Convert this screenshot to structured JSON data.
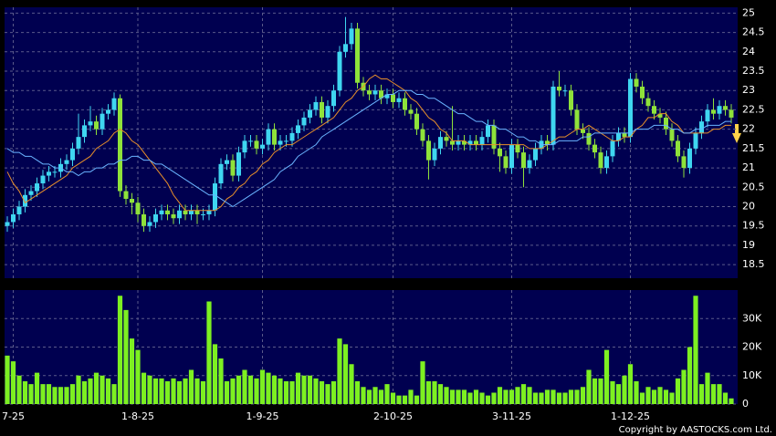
{
  "chart_data": [
    {
      "type": "candlestick",
      "up_color": "#3fd6f0",
      "down_color": "#8fe23a",
      "grid": true,
      "ylim": [
        18.15,
        25.15
      ],
      "yticks": [
        18.5,
        19,
        19.5,
        20,
        20.5,
        21,
        21.5,
        22,
        22.5,
        23,
        23.5,
        24,
        24.5,
        25
      ],
      "open": [
        19.5,
        19.6,
        19.8,
        20.0,
        20.3,
        20.4,
        20.6,
        20.8,
        20.9,
        20.9,
        21.1,
        21.2,
        21.5,
        21.8,
        22.1,
        22.2,
        22.0,
        22.4,
        22.5,
        22.8,
        20.4,
        20.2,
        20.1,
        19.8,
        19.5,
        19.6,
        19.8,
        19.9,
        19.8,
        19.7,
        19.9,
        19.8,
        19.9,
        19.8,
        19.8,
        19.9,
        20.6,
        21.1,
        21.2,
        20.8,
        21.4,
        21.7,
        21.7,
        21.5,
        21.6,
        22.0,
        21.6,
        21.7,
        21.7,
        21.9,
        22.1,
        22.3,
        22.5,
        22.7,
        22.3,
        22.6,
        23.0,
        24.0,
        24.2,
        24.6,
        23.2,
        23.0,
        22.9,
        23.0,
        22.8,
        22.9,
        22.7,
        22.8,
        22.5,
        22.4,
        22.0,
        21.7,
        21.2,
        21.5,
        21.8,
        21.7,
        21.6,
        21.7,
        21.6,
        21.7,
        21.6,
        21.8,
        22.1,
        21.5,
        21.3,
        21.0,
        21.6,
        21.4,
        21.0,
        21.2,
        21.5,
        21.7,
        21.6,
        23.1,
        23.0,
        23.0,
        22.5,
        22.0,
        21.9,
        21.6,
        21.4,
        21.0,
        21.3,
        21.7,
        21.9,
        21.8,
        23.3,
        23.1,
        22.8,
        22.6,
        22.4,
        22.3,
        22.0,
        21.7,
        21.3,
        21.0,
        21.5,
        21.9,
        22.2,
        22.5,
        22.4,
        22.6,
        22.5
      ],
      "high": [
        19.75,
        19.95,
        20.15,
        20.45,
        20.55,
        20.75,
        20.95,
        21.05,
        21.05,
        21.25,
        21.35,
        21.65,
        22.4,
        22.25,
        22.6,
        22.35,
        22.55,
        22.65,
        22.95,
        22.9,
        20.55,
        20.35,
        20.25,
        19.95,
        19.75,
        19.95,
        20.05,
        20.05,
        19.95,
        20.05,
        20.05,
        20.05,
        20.05,
        19.95,
        20.05,
        20.75,
        21.25,
        21.35,
        21.35,
        21.55,
        21.85,
        21.85,
        21.85,
        21.75,
        22.15,
        22.15,
        21.85,
        21.85,
        22.05,
        22.25,
        22.45,
        22.65,
        22.85,
        22.85,
        22.75,
        23.15,
        24.15,
        24.9,
        24.75,
        24.75,
        23.35,
        23.15,
        23.15,
        23.15,
        23.05,
        23.05,
        22.95,
        22.95,
        22.65,
        22.55,
        22.15,
        21.85,
        21.65,
        21.95,
        21.95,
        22.6,
        21.85,
        21.85,
        21.85,
        21.85,
        21.95,
        22.25,
        22.25,
        21.65,
        21.45,
        21.75,
        21.75,
        21.55,
        21.35,
        21.65,
        21.85,
        21.85,
        23.25,
        23.5,
        23.15,
        23.15,
        22.65,
        22.15,
        22.05,
        21.75,
        21.55,
        21.45,
        21.85,
        22.05,
        22.05,
        23.45,
        23.45,
        23.25,
        22.95,
        22.75,
        22.55,
        22.45,
        22.15,
        21.85,
        21.45,
        21.65,
        22.05,
        22.35,
        22.65,
        22.8,
        22.75,
        22.75,
        22.65
      ],
      "low": [
        19.35,
        19.45,
        19.65,
        19.85,
        20.15,
        20.25,
        20.45,
        20.65,
        20.75,
        20.75,
        20.95,
        21.05,
        21.35,
        21.65,
        21.95,
        21.85,
        21.85,
        22.25,
        22.35,
        20.25,
        20.05,
        19.8,
        19.6,
        19.35,
        19.35,
        19.45,
        19.65,
        19.65,
        19.55,
        19.55,
        19.65,
        19.65,
        19.55,
        19.65,
        19.65,
        19.75,
        20.45,
        20.95,
        20.65,
        20.65,
        21.25,
        21.55,
        21.35,
        21.35,
        21.45,
        21.45,
        21.45,
        21.55,
        21.55,
        21.75,
        21.95,
        22.15,
        22.35,
        22.15,
        22.15,
        22.45,
        22.85,
        23.85,
        24.05,
        23.05,
        22.85,
        22.75,
        22.75,
        22.65,
        22.65,
        22.55,
        22.55,
        22.35,
        22.25,
        21.85,
        21.55,
        20.7,
        21.05,
        21.35,
        21.55,
        21.45,
        21.45,
        21.45,
        21.45,
        21.45,
        21.45,
        21.65,
        21.35,
        20.9,
        20.85,
        20.85,
        21.25,
        20.5,
        20.85,
        21.05,
        21.35,
        21.45,
        21.45,
        22.85,
        22.85,
        22.35,
        21.85,
        21.75,
        21.45,
        21.25,
        20.85,
        20.85,
        21.15,
        21.55,
        21.65,
        21.65,
        22.95,
        22.65,
        22.45,
        22.25,
        22.15,
        21.85,
        21.55,
        21.15,
        20.75,
        20.85,
        21.35,
        21.75,
        22.05,
        22.25,
        22.25,
        22.35,
        22.15
      ],
      "close": [
        19.6,
        19.8,
        20.0,
        20.3,
        20.4,
        20.6,
        20.8,
        20.9,
        20.9,
        21.1,
        21.2,
        21.5,
        21.8,
        22.1,
        22.2,
        22.0,
        22.4,
        22.5,
        22.8,
        20.4,
        20.2,
        20.1,
        19.8,
        19.5,
        19.6,
        19.8,
        19.9,
        19.8,
        19.7,
        19.9,
        19.8,
        19.9,
        19.8,
        19.8,
        19.9,
        20.6,
        21.1,
        21.2,
        20.8,
        21.4,
        21.7,
        21.7,
        21.5,
        21.6,
        22.0,
        21.6,
        21.7,
        21.7,
        21.9,
        22.1,
        22.3,
        22.5,
        22.7,
        22.3,
        22.6,
        23.0,
        24.0,
        24.2,
        24.6,
        23.2,
        23.0,
        22.9,
        23.0,
        22.8,
        22.9,
        22.7,
        22.8,
        22.5,
        22.4,
        22.0,
        21.7,
        21.2,
        21.5,
        21.8,
        21.7,
        21.6,
        21.7,
        21.6,
        21.7,
        21.6,
        21.8,
        22.1,
        21.5,
        21.3,
        21.0,
        21.6,
        21.4,
        21.0,
        21.2,
        21.5,
        21.7,
        21.6,
        23.1,
        23.0,
        23.0,
        22.5,
        22.0,
        21.9,
        21.6,
        21.4,
        21.0,
        21.3,
        21.7,
        21.9,
        21.8,
        23.3,
        23.1,
        22.8,
        22.6,
        22.4,
        22.3,
        22.0,
        21.7,
        21.3,
        21.0,
        21.5,
        21.9,
        22.2,
        22.5,
        22.4,
        22.6,
        22.5,
        22.3
      ],
      "series": [
        {
          "color": "#e8902a",
          "values": [
            20.9,
            20.6,
            20.4,
            20.1,
            20.2,
            20.3,
            20.4,
            20.5,
            20.6,
            20.7,
            20.8,
            21.0,
            21.1,
            21.2,
            21.3,
            21.5,
            21.6,
            21.7,
            21.9,
            22.0,
            21.9,
            21.7,
            21.6,
            21.4,
            21.2,
            21.0,
            20.8,
            20.6,
            20.3,
            20.1,
            19.9,
            19.9,
            19.9,
            19.9,
            19.9,
            19.9,
            20.0,
            20.2,
            20.3,
            20.5,
            20.6,
            20.8,
            20.9,
            21.1,
            21.2,
            21.4,
            21.5,
            21.6,
            21.6,
            21.7,
            21.8,
            21.9,
            22.0,
            22.1,
            22.2,
            22.3,
            22.5,
            22.7,
            22.8,
            23.0,
            23.1,
            23.3,
            23.4,
            23.3,
            23.3,
            23.2,
            23.1,
            23.0,
            22.8,
            22.7,
            22.5,
            22.3,
            22.2,
            22.0,
            21.9,
            21.7,
            21.7,
            21.7,
            21.6,
            21.6,
            21.6,
            21.6,
            21.6,
            21.6,
            21.6,
            21.6,
            21.6,
            21.6,
            21.5,
            21.5,
            21.5,
            21.6,
            21.7,
            21.8,
            21.8,
            21.9,
            22.0,
            22.0,
            22.1,
            22.0,
            21.9,
            21.8,
            21.7,
            21.7,
            21.8,
            21.8,
            22.0,
            22.1,
            22.3,
            22.3,
            22.4,
            22.4,
            22.2,
            22.1,
            21.9,
            21.9,
            21.9,
            21.9,
            21.9,
            22.0,
            22.0,
            22.1,
            22.1
          ]
        },
        {
          "color": "#6ab4ff",
          "values": [
            21.5,
            21.4,
            21.4,
            21.3,
            21.3,
            21.2,
            21.1,
            21.1,
            21.0,
            21.0,
            20.9,
            20.9,
            20.8,
            20.9,
            20.9,
            21.0,
            21.0,
            21.1,
            21.1,
            21.2,
            21.2,
            21.3,
            21.3,
            21.2,
            21.2,
            21.1,
            21.1,
            21.0,
            20.9,
            20.8,
            20.7,
            20.6,
            20.5,
            20.4,
            20.3,
            20.3,
            20.2,
            20.1,
            20.0,
            20.1,
            20.2,
            20.3,
            20.4,
            20.5,
            20.6,
            20.7,
            20.9,
            21.0,
            21.1,
            21.3,
            21.4,
            21.5,
            21.6,
            21.8,
            21.9,
            22.0,
            22.1,
            22.2,
            22.3,
            22.4,
            22.5,
            22.6,
            22.7,
            22.8,
            22.9,
            22.9,
            23.0,
            23.0,
            23.0,
            22.9,
            22.9,
            22.8,
            22.8,
            22.7,
            22.6,
            22.5,
            22.4,
            22.4,
            22.3,
            22.2,
            22.2,
            22.1,
            22.1,
            22.0,
            22.0,
            21.9,
            21.8,
            21.8,
            21.7,
            21.7,
            21.6,
            21.6,
            21.6,
            21.7,
            21.7,
            21.7,
            21.7,
            21.8,
            21.8,
            21.9,
            21.9,
            21.9,
            21.9,
            21.9,
            21.9,
            21.9,
            22.0,
            22.0,
            22.0,
            22.1,
            22.1,
            22.1,
            22.0,
            22.0,
            21.9,
            21.9,
            22.0,
            22.0,
            22.1,
            22.1,
            22.1,
            22.2,
            22.2
          ]
        }
      ]
    },
    {
      "type": "bar",
      "color": "#7df021",
      "grid": true,
      "categories": [
        null,
        "7-25",
        null,
        null,
        null,
        null,
        null,
        null,
        null,
        null,
        null,
        null,
        null,
        null,
        null,
        null,
        null,
        null,
        null,
        null,
        null,
        null,
        "1-8-25",
        null,
        null,
        null,
        null,
        null,
        null,
        null,
        null,
        null,
        null,
        null,
        null,
        null,
        null,
        null,
        null,
        null,
        null,
        null,
        null,
        "1-9-25",
        null,
        null,
        null,
        null,
        null,
        null,
        null,
        null,
        null,
        null,
        null,
        null,
        null,
        null,
        null,
        null,
        null,
        null,
        null,
        null,
        null,
        "2-10-25",
        null,
        null,
        null,
        null,
        null,
        null,
        null,
        null,
        null,
        null,
        null,
        null,
        null,
        null,
        null,
        null,
        null,
        null,
        null,
        "3-11-25",
        null,
        null,
        null,
        null,
        null,
        null,
        null,
        null,
        null,
        null,
        null,
        null,
        null,
        null,
        null,
        null,
        null,
        null,
        null,
        "1-12-25",
        null,
        null,
        null,
        null,
        null,
        null,
        null,
        null,
        null,
        null,
        null,
        null,
        null,
        null,
        null,
        null,
        null
      ],
      "values": [
        17000,
        15000,
        10000,
        8000,
        7000,
        11000,
        7000,
        7000,
        6000,
        6000,
        6000,
        7000,
        10000,
        8000,
        9000,
        11000,
        10000,
        9000,
        7000,
        38000,
        33000,
        23000,
        19000,
        11000,
        10000,
        9000,
        9000,
        8000,
        9000,
        8000,
        9000,
        12000,
        9000,
        8000,
        36000,
        21000,
        16000,
        8000,
        9000,
        10000,
        12000,
        10000,
        9000,
        12000,
        11000,
        10000,
        9000,
        8000,
        8000,
        11000,
        10000,
        10000,
        9000,
        8000,
        7000,
        8000,
        23000,
        21000,
        14000,
        8000,
        6000,
        5000,
        6000,
        5000,
        7000,
        4000,
        3000,
        3000,
        5000,
        3000,
        15000,
        8000,
        8000,
        7000,
        6000,
        5000,
        5000,
        5000,
        4000,
        5000,
        4000,
        3000,
        4000,
        6000,
        5000,
        5000,
        6000,
        7000,
        6000,
        4000,
        4000,
        5000,
        5000,
        4000,
        4000,
        5000,
        5000,
        6000,
        12000,
        9000,
        9000,
        19000,
        8000,
        7000,
        10000,
        14000,
        8000,
        4000,
        6000,
        5000,
        6000,
        5000,
        4000,
        9000,
        12000,
        20000,
        38000,
        7000,
        11000,
        7000,
        7000,
        4000,
        2000
      ],
      "ylim": [
        0,
        40000
      ],
      "yticks": [
        0,
        {
          "value": 10000,
          "label": "10K"
        },
        {
          "value": 20000,
          "label": "20K"
        },
        {
          "value": 30000,
          "label": "30K"
        }
      ],
      "note": "Copyright by AASTOCKS.com Ltd."
    }
  ]
}
